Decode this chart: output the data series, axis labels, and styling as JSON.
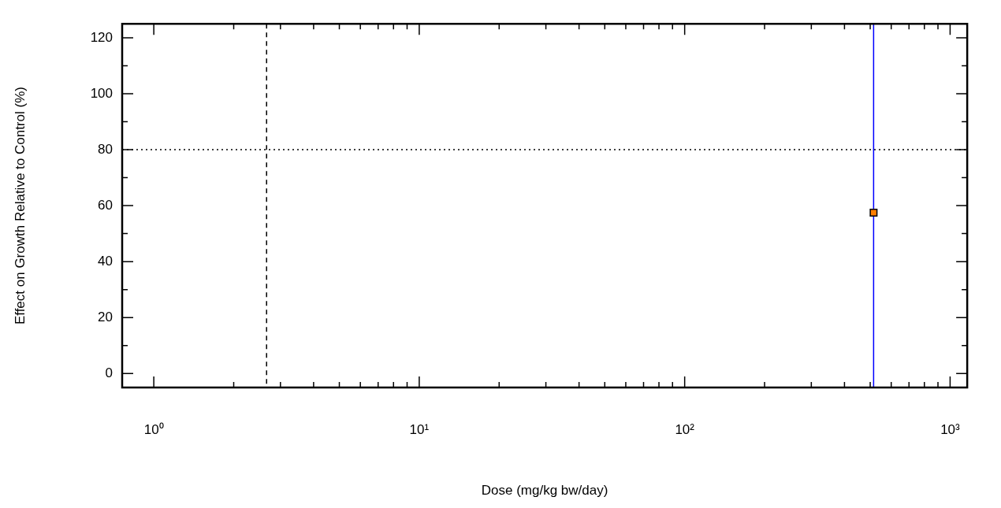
{
  "chart_data": {
    "type": "scatter",
    "xlabel": "Dose (mg/kg bw/day)",
    "ylabel": "Effect on Growth Relative to Control (%)",
    "log": "x",
    "marker": "square",
    "grid": false,
    "legend": false,
    "xlim": [
      0.76,
      1160
    ],
    "ylim": [
      -5,
      125
    ],
    "xticks": [
      {
        "value": 1,
        "label": "10⁰"
      },
      {
        "value": 2,
        "label": null
      },
      {
        "value": 3,
        "label": null
      },
      {
        "value": 4,
        "label": null
      },
      {
        "value": 5,
        "label": null
      },
      {
        "value": 6,
        "label": null
      },
      {
        "value": 7,
        "label": null
      },
      {
        "value": 8,
        "label": null
      },
      {
        "value": 9,
        "label": null
      },
      {
        "value": 10,
        "label": "10¹"
      },
      {
        "value": 20,
        "label": null
      },
      {
        "value": 30,
        "label": null
      },
      {
        "value": 40,
        "label": null
      },
      {
        "value": 50,
        "label": null
      },
      {
        "value": 60,
        "label": null
      },
      {
        "value": 70,
        "label": null
      },
      {
        "value": 80,
        "label": null
      },
      {
        "value": 90,
        "label": null
      },
      {
        "value": 100,
        "label": "10²"
      },
      {
        "value": 200,
        "label": null
      },
      {
        "value": 300,
        "label": null
      },
      {
        "value": 400,
        "label": null
      },
      {
        "value": 500,
        "label": null
      },
      {
        "value": 600,
        "label": null
      },
      {
        "value": 700,
        "label": null
      },
      {
        "value": 800,
        "label": null
      },
      {
        "value": 900,
        "label": null
      },
      {
        "value": 1000,
        "label": "10³"
      }
    ],
    "yticks": [
      0,
      {
        "value": 10,
        "label": null
      },
      20,
      {
        "value": 30,
        "label": null
      },
      40,
      {
        "value": 50,
        "label": null
      },
      60,
      {
        "value": 70,
        "label": null
      },
      80,
      {
        "value": 90,
        "label": null
      },
      100,
      {
        "value": 110,
        "label": null
      },
      120
    ],
    "series": [
      {
        "color": "#ff7f00",
        "x": [
          515
        ],
        "values": [
          57.5
        ]
      }
    ],
    "ref_lines": [
      {
        "axis": "y",
        "value": 80,
        "color": "#000000",
        "line_style": "dotted"
      },
      {
        "axis": "x",
        "value": 2.66,
        "color": "#000000",
        "line_style": "dashed"
      },
      {
        "axis": "x",
        "value": 515,
        "color": "#0000ff",
        "line_style": "solid"
      }
    ]
  }
}
